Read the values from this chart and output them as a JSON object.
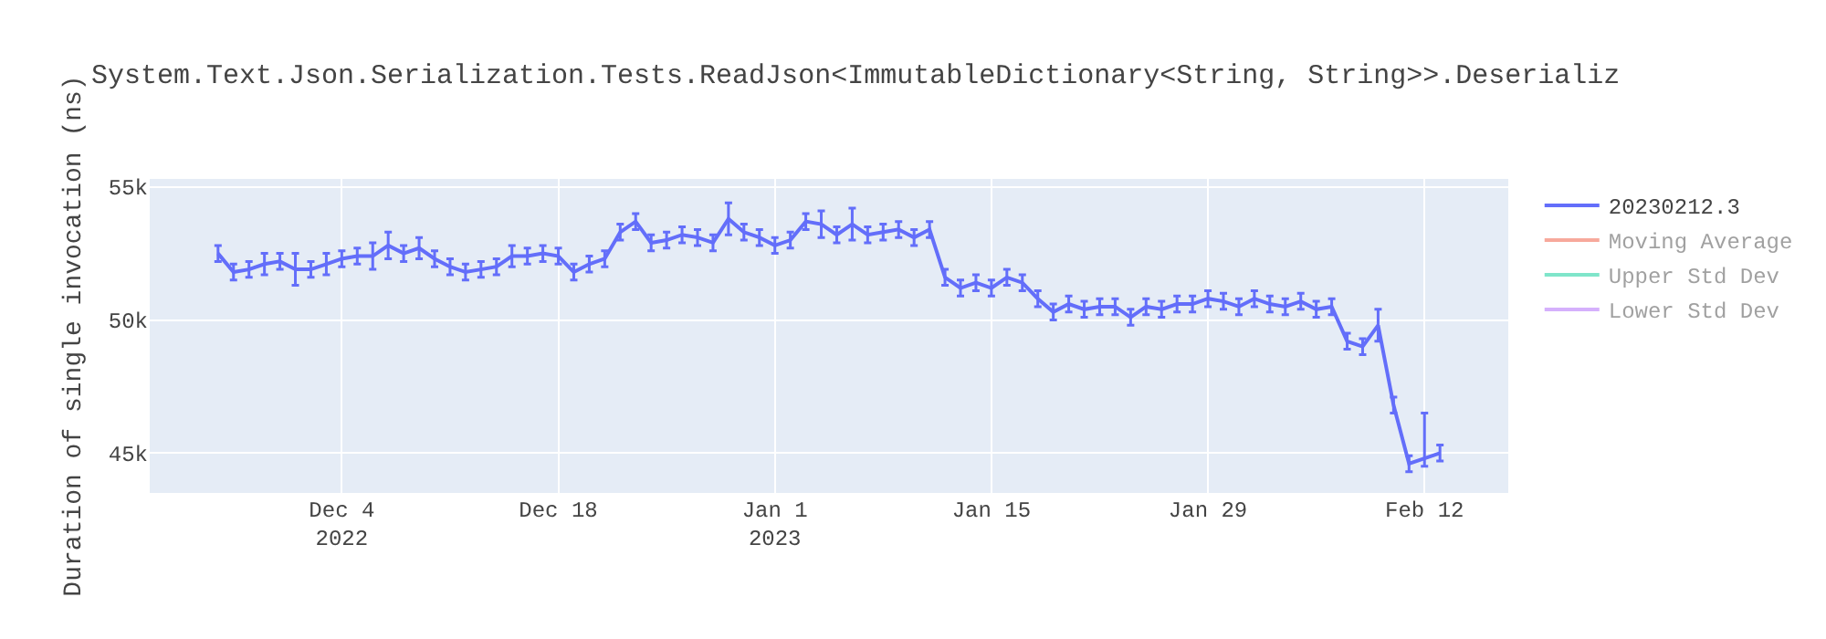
{
  "chart_data": {
    "type": "line",
    "title": "System.Text.Json.Serialization.Tests.ReadJson<ImmutableDictionary<String, String>>.Deserializ",
    "ylabel": "Duration of single invocation (ns)",
    "x": [
      "2022-11-26",
      "2022-11-27",
      "2022-11-28",
      "2022-11-29",
      "2022-11-30",
      "2022-12-01",
      "2022-12-02",
      "2022-12-03",
      "2022-12-04",
      "2022-12-05",
      "2022-12-06",
      "2022-12-07",
      "2022-12-08",
      "2022-12-09",
      "2022-12-10",
      "2022-12-11",
      "2022-12-12",
      "2022-12-13",
      "2022-12-14",
      "2022-12-15",
      "2022-12-16",
      "2022-12-17",
      "2022-12-18",
      "2022-12-19",
      "2022-12-20",
      "2022-12-21",
      "2022-12-22",
      "2022-12-23",
      "2022-12-24",
      "2022-12-25",
      "2022-12-26",
      "2022-12-27",
      "2022-12-28",
      "2022-12-29",
      "2022-12-30",
      "2022-12-31",
      "2023-01-01",
      "2023-01-02",
      "2023-01-03",
      "2023-01-04",
      "2023-01-05",
      "2023-01-06",
      "2023-01-07",
      "2023-01-08",
      "2023-01-09",
      "2023-01-10",
      "2023-01-11",
      "2023-01-12",
      "2023-01-13",
      "2023-01-14",
      "2023-01-15",
      "2023-01-16",
      "2023-01-17",
      "2023-01-18",
      "2023-01-19",
      "2023-01-20",
      "2023-01-21",
      "2023-01-22",
      "2023-01-23",
      "2023-01-24",
      "2023-01-25",
      "2023-01-26",
      "2023-01-27",
      "2023-01-28",
      "2023-01-29",
      "2023-01-30",
      "2023-01-31",
      "2023-02-01",
      "2023-02-02",
      "2023-02-03",
      "2023-02-04",
      "2023-02-05",
      "2023-02-06",
      "2023-02-07",
      "2023-02-08",
      "2023-02-09",
      "2023-02-10",
      "2023-02-11",
      "2023-02-12",
      "2023-02-13"
    ],
    "series": [
      {
        "name": "20230212.3",
        "color": "#636efa",
        "values": [
          52500,
          51800,
          51900,
          52100,
          52200,
          51900,
          51900,
          52100,
          52300,
          52400,
          52400,
          52800,
          52500,
          52700,
          52300,
          52000,
          51800,
          51900,
          52000,
          52400,
          52400,
          52500,
          52400,
          51800,
          52100,
          52300,
          53300,
          53700,
          52900,
          53000,
          53200,
          53100,
          52900,
          53800,
          53300,
          53100,
          52800,
          53000,
          53700,
          53600,
          53200,
          53600,
          53200,
          53300,
          53400,
          53100,
          53400,
          51600,
          51200,
          51400,
          51200,
          51600,
          51400,
          50800,
          50300,
          50600,
          50400,
          50500,
          50500,
          50100,
          50500,
          50400,
          50600,
          50600,
          50800,
          50700,
          50500,
          50800,
          50600,
          50500,
          50700,
          50400,
          50500,
          49200,
          49000,
          49800,
          46800,
          44600,
          44800,
          45000
        ],
        "errors": [
          300,
          300,
          300,
          400,
          300,
          600,
          300,
          400,
          300,
          300,
          500,
          500,
          300,
          400,
          300,
          300,
          300,
          300,
          300,
          400,
          300,
          300,
          300,
          300,
          300,
          300,
          300,
          300,
          300,
          300,
          300,
          300,
          300,
          600,
          300,
          300,
          300,
          300,
          300,
          500,
          300,
          600,
          300,
          300,
          300,
          300,
          300,
          300,
          300,
          300,
          300,
          300,
          300,
          300,
          300,
          300,
          300,
          300,
          300,
          300,
          300,
          300,
          300,
          300,
          300,
          300,
          300,
          300,
          300,
          300,
          300,
          300,
          300,
          300,
          300,
          600,
          300,
          300,
          [
            44500,
            46500
          ],
          300
        ]
      },
      {
        "name": "Moving Average",
        "color": "#ef553b",
        "values": [
          null,
          null,
          null,
          null,
          null,
          null,
          null,
          null,
          null,
          null,
          null,
          null,
          null,
          null,
          null,
          null,
          null,
          null,
          null,
          null,
          null,
          null,
          null,
          null,
          null,
          null,
          null,
          null,
          null,
          null,
          null,
          null,
          null,
          null,
          null,
          null,
          null,
          null,
          null,
          null,
          null,
          null,
          null,
          null,
          null,
          null,
          null,
          null,
          null,
          null,
          null,
          null,
          null,
          null,
          null,
          null,
          null,
          null,
          null,
          null,
          null,
          null,
          null,
          null,
          null,
          null,
          null,
          null,
          null,
          null,
          null,
          null,
          null,
          null,
          null,
          null,
          null,
          null,
          null,
          null
        ]
      },
      {
        "name": "Upper Std Dev",
        "color": "#00cc96",
        "values": [
          null,
          null,
          null,
          null,
          null,
          null,
          null,
          null,
          null,
          null,
          null,
          null,
          null,
          null,
          null,
          null,
          null,
          null,
          null,
          null,
          null,
          null,
          null,
          null,
          null,
          null,
          null,
          null,
          null,
          null,
          null,
          null,
          null,
          null,
          null,
          null,
          null,
          null,
          null,
          null,
          null,
          null,
          null,
          null,
          null,
          null,
          null,
          null,
          null,
          null,
          null,
          null,
          null,
          null,
          null,
          null,
          null,
          null,
          null,
          null,
          null,
          null,
          null,
          null,
          null,
          null,
          null,
          null,
          null,
          null,
          null,
          null,
          null,
          null,
          null,
          null,
          null,
          null,
          null,
          null
        ]
      },
      {
        "name": "Lower Std Dev",
        "color": "#ab63fa",
        "values": [
          null,
          null,
          null,
          null,
          null,
          null,
          null,
          null,
          null,
          null,
          null,
          null,
          null,
          null,
          null,
          null,
          null,
          null,
          null,
          null,
          null,
          null,
          null,
          null,
          null,
          null,
          null,
          null,
          null,
          null,
          null,
          null,
          null,
          null,
          null,
          null,
          null,
          null,
          null,
          null,
          null,
          null,
          null,
          null,
          null,
          null,
          null,
          null,
          null,
          null,
          null,
          null,
          null,
          null,
          null,
          null,
          null,
          null,
          null,
          null,
          null,
          null,
          null,
          null,
          null,
          null,
          null,
          null,
          null,
          null,
          null,
          null,
          null,
          null,
          null,
          null,
          null,
          null,
          null,
          null
        ]
      }
    ],
    "xlim": [
      "2022-11-21T14:00",
      "2023-02-17T10:00"
    ],
    "xticks": [
      {
        "value": "2022-12-04",
        "label": "Dec 4\n2022"
      },
      {
        "value": "2022-12-18",
        "label": "Dec 18"
      },
      {
        "value": "2023-01-01",
        "label": "Jan 1\n2023"
      },
      {
        "value": "2023-01-15",
        "label": "Jan 15"
      },
      {
        "value": "2023-01-29",
        "label": "Jan 29"
      },
      {
        "value": "2023-02-12",
        "label": "Feb 12"
      }
    ],
    "ylim": [
      43500,
      55300
    ],
    "yticks": [
      {
        "value": 45000,
        "label": "45k"
      },
      {
        "value": 50000,
        "label": "50k"
      },
      {
        "value": 55000,
        "label": "55k"
      }
    ],
    "grid": true,
    "legend": "top right",
    "marker": "none",
    "line_style": "solid"
  }
}
